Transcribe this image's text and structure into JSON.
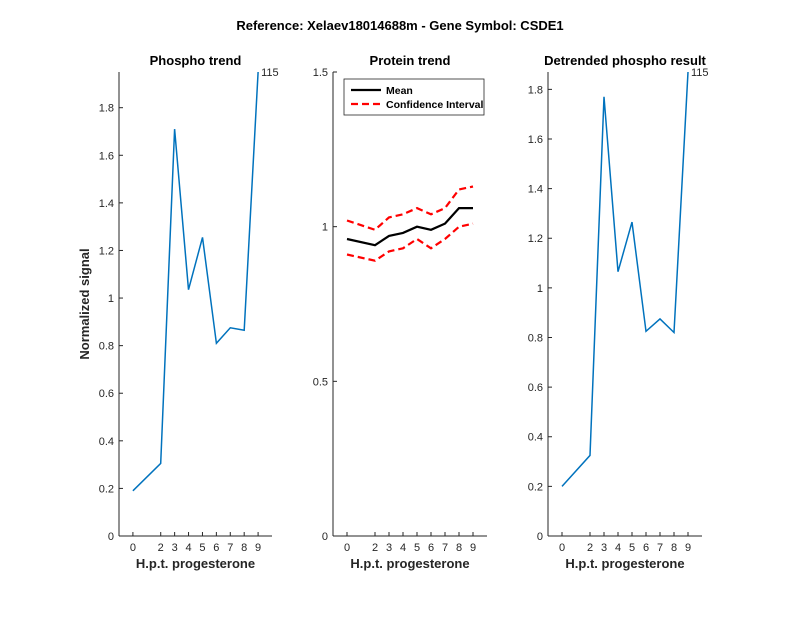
{
  "figure_title": "Reference:  Xelaev18014688m - Gene Symbol:  CSDE1",
  "colors": {
    "blue": "#0072bd",
    "black": "#000000",
    "red": "#ff0000",
    "axis": "#262626"
  },
  "chart_data": [
    {
      "type": "line",
      "title": "Phospho trend",
      "xlabel": "H.p.t. progesterone",
      "ylabel": "Normalized signal",
      "x": [
        0,
        2,
        3,
        4,
        5,
        6,
        7,
        8,
        9
      ],
      "xticks": [
        "0",
        "2",
        "3",
        "4",
        "5",
        "6",
        "7",
        "8",
        "9"
      ],
      "ylim": [
        0,
        1.95
      ],
      "yticks": [
        0,
        0.2,
        0.4,
        0.6,
        0.8,
        1,
        1.2,
        1.4,
        1.6,
        1.8
      ],
      "ytick_labels": [
        "0",
        "0.2",
        "0.4",
        "0.6",
        "0.8",
        "1",
        "1.2",
        "1.4",
        "1.6",
        "1.8"
      ],
      "series": [
        {
          "name": "Phospho",
          "color": "#0072bd",
          "values": [
            0.19,
            0.305,
            1.71,
            1.035,
            1.255,
            0.81,
            0.875,
            0.865,
            1.95
          ]
        }
      ],
      "annotation": "115"
    },
    {
      "type": "line",
      "title": "Protein trend",
      "xlabel": "H.p.t. progesterone",
      "ylabel": "",
      "x": [
        0,
        2,
        3,
        4,
        5,
        6,
        7,
        8,
        9
      ],
      "xticks": [
        "0",
        "2",
        "3",
        "4",
        "5",
        "6",
        "7",
        "8",
        "9"
      ],
      "ylim": [
        0,
        1.5
      ],
      "yticks": [
        0,
        0.5,
        1,
        1.5
      ],
      "ytick_labels": [
        "0",
        "0.5",
        "1",
        "1.5"
      ],
      "series": [
        {
          "name": "Mean",
          "color": "#000000",
          "dash": "",
          "values": [
            0.96,
            0.94,
            0.97,
            0.98,
            1.0,
            0.99,
            1.01,
            1.06,
            1.06
          ]
        },
        {
          "name": "Confidence Interval",
          "color": "#ff0000",
          "dash": "7,4",
          "values": [
            1.02,
            0.99,
            1.03,
            1.04,
            1.06,
            1.04,
            1.06,
            1.12,
            1.13
          ]
        },
        {
          "name": "Confidence Interval lower",
          "color": "#ff0000",
          "dash": "7,4",
          "values": [
            0.91,
            0.89,
            0.92,
            0.93,
            0.96,
            0.93,
            0.96,
            1.0,
            1.01
          ]
        }
      ],
      "legend": {
        "position": "top-right",
        "entries": [
          "Mean",
          "Confidence Interval"
        ]
      }
    },
    {
      "type": "line",
      "title": "Detrended phospho result",
      "xlabel": "H.p.t. progesterone",
      "ylabel": "",
      "x": [
        0,
        2,
        3,
        4,
        5,
        6,
        7,
        8,
        9
      ],
      "xticks": [
        "0",
        "2",
        "3",
        "4",
        "5",
        "6",
        "7",
        "8",
        "9"
      ],
      "ylim": [
        0,
        1.87
      ],
      "yticks": [
        0,
        0.2,
        0.4,
        0.6,
        0.8,
        1,
        1.2,
        1.4,
        1.6,
        1.8
      ],
      "ytick_labels": [
        "0",
        "0.2",
        "0.4",
        "0.6",
        "0.8",
        "1",
        "1.2",
        "1.4",
        "1.6",
        "1.8"
      ],
      "series": [
        {
          "name": "Detrended",
          "color": "#0072bd",
          "values": [
            0.2,
            0.325,
            1.77,
            1.065,
            1.265,
            0.825,
            0.875,
            0.82,
            1.87
          ]
        }
      ],
      "annotation": "115"
    }
  ]
}
